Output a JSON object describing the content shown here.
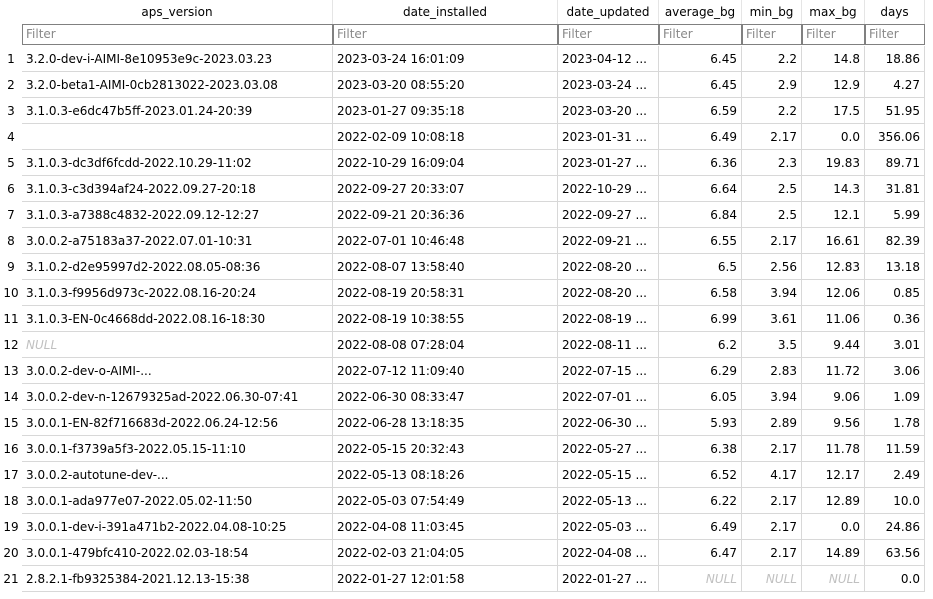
{
  "columns": [
    "aps_version",
    "date_installed",
    "date_updated",
    "average_bg",
    "min_bg",
    "max_bg",
    "days"
  ],
  "filter_placeholder": "Filter",
  "null_text": "NULL",
  "rows": [
    [
      "1",
      "3.2.0-dev-i-AIMI-8e10953e9c-2023.03.23",
      "2023-03-24 16:01:09",
      "2023-04-12 ...",
      "6.45",
      "2.2",
      "14.8",
      "18.86"
    ],
    [
      "2",
      "3.2.0-beta1-AIMI-0cb2813022-2023.03.08",
      "2023-03-20 08:55:20",
      "2023-03-24 ...",
      "6.45",
      "2.9",
      "12.9",
      "4.27"
    ],
    [
      "3",
      "3.1.0.3-e6dc47b5ff-2023.01.24-20:39",
      "2023-01-27 09:35:18",
      "2023-03-20 ...",
      "6.59",
      "2.2",
      "17.5",
      "51.95"
    ],
    [
      "4",
      "",
      "2022-02-09 10:08:18",
      "2023-01-31 ...",
      "6.49",
      "2.17",
      "0.0",
      "356.06"
    ],
    [
      "5",
      "3.1.0.3-dc3df6fcdd-2022.10.29-11:02",
      "2022-10-29 16:09:04",
      "2023-01-27 ...",
      "6.36",
      "2.3",
      "19.83",
      "89.71"
    ],
    [
      "6",
      "3.1.0.3-c3d394af24-2022.09.27-20:18",
      "2022-09-27 20:33:07",
      "2022-10-29 ...",
      "6.64",
      "2.5",
      "14.3",
      "31.81"
    ],
    [
      "7",
      "3.1.0.3-a7388c4832-2022.09.12-12:27",
      "2022-09-21 20:36:36",
      "2022-09-27 ...",
      "6.84",
      "2.5",
      "12.1",
      "5.99"
    ],
    [
      "8",
      "3.0.0.2-a75183a37-2022.07.01-10:31",
      "2022-07-01 10:46:48",
      "2022-09-21 ...",
      "6.55",
      "2.17",
      "16.61",
      "82.39"
    ],
    [
      "9",
      "3.1.0.2-d2e95997d2-2022.08.05-08:36",
      "2022-08-07 13:58:40",
      "2022-08-20 ...",
      "6.5",
      "2.56",
      "12.83",
      "13.18"
    ],
    [
      "10",
      "3.1.0.3-f9956d973c-2022.08.16-20:24",
      "2022-08-19 20:58:31",
      "2022-08-20 ...",
      "6.58",
      "3.94",
      "12.06",
      "0.85"
    ],
    [
      "11",
      "3.1.0.3-EN-0c4668dd-2022.08.16-18:30",
      "2022-08-19 10:38:55",
      "2022-08-19 ...",
      "6.99",
      "3.61",
      "11.06",
      "0.36"
    ],
    [
      "12",
      null,
      "2022-08-08 07:28:04",
      "2022-08-11 ...",
      "6.2",
      "3.5",
      "9.44",
      "3.01"
    ],
    [
      "13",
      "3.0.0.2-dev-o-AIMI-...",
      "2022-07-12 11:09:40",
      "2022-07-15 ...",
      "6.29",
      "2.83",
      "11.72",
      "3.06"
    ],
    [
      "14",
      "3.0.0.2-dev-n-12679325ad-2022.06.30-07:41",
      "2022-06-30 08:33:47",
      "2022-07-01 ...",
      "6.05",
      "3.94",
      "9.06",
      "1.09"
    ],
    [
      "15",
      "3.0.0.1-EN-82f716683d-2022.06.24-12:56",
      "2022-06-28 13:18:35",
      "2022-06-30 ...",
      "5.93",
      "2.89",
      "9.56",
      "1.78"
    ],
    [
      "16",
      "3.0.0.1-f3739a5f3-2022.05.15-11:10",
      "2022-05-15 20:32:43",
      "2022-05-27 ...",
      "6.38",
      "2.17",
      "11.78",
      "11.59"
    ],
    [
      "17",
      "3.0.0.2-autotune-dev-...",
      "2022-05-13 08:18:26",
      "2022-05-15 ...",
      "6.52",
      "4.17",
      "12.17",
      "2.49"
    ],
    [
      "18",
      "3.0.0.1-ada977e07-2022.05.02-11:50",
      "2022-05-03 07:54:49",
      "2022-05-13 ...",
      "6.22",
      "2.17",
      "12.89",
      "10.0"
    ],
    [
      "19",
      "3.0.0.1-dev-i-391a471b2-2022.04.08-10:25",
      "2022-04-08 11:03:45",
      "2022-05-03 ...",
      "6.49",
      "2.17",
      "0.0",
      "24.86"
    ],
    [
      "20",
      "3.0.0.1-479bfc410-2022.02.03-18:54",
      "2022-02-03 21:04:05",
      "2022-04-08 ...",
      "6.47",
      "2.17",
      "14.89",
      "63.56"
    ],
    [
      "21",
      "2.8.2.1-fb9325384-2021.12.13-15:38",
      "2022-01-27 12:01:58",
      "2022-01-27 ...",
      null,
      null,
      null,
      "0.0"
    ]
  ]
}
